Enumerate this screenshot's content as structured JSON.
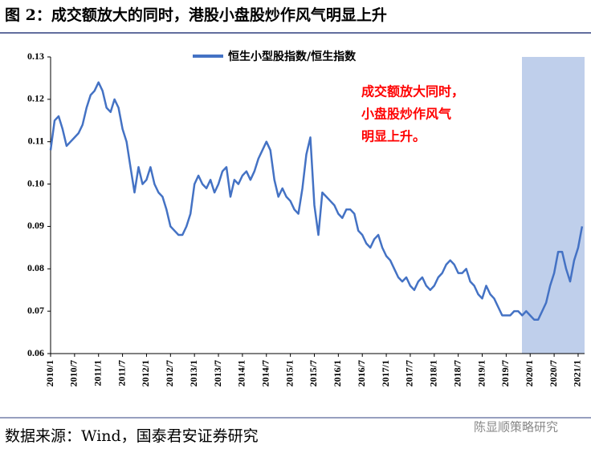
{
  "chart_data": {
    "type": "line",
    "title": "图 2：成交额放大的同时，港股小盘股炒作风气明显上升",
    "annotation": [
      "成交额放大同时，",
      "小盘股炒作风气",
      "明显上升。"
    ],
    "source": "数据来源：Wind，国泰君安证券研究",
    "watermark": "陈显顺策略研究",
    "categories": [
      "2010/1",
      null,
      null,
      null,
      null,
      null,
      "2010/7",
      null,
      null,
      null,
      null,
      null,
      "2011/1",
      null,
      null,
      null,
      null,
      null,
      "2011/7",
      null,
      null,
      null,
      null,
      null,
      "2012/1",
      null,
      null,
      null,
      null,
      null,
      "2012/7",
      null,
      null,
      null,
      null,
      null,
      "2013/1",
      null,
      null,
      null,
      null,
      null,
      "2013/7",
      null,
      null,
      null,
      null,
      null,
      "2014/1",
      null,
      null,
      null,
      null,
      null,
      "2014/7",
      null,
      null,
      null,
      null,
      null,
      "2015/1",
      null,
      null,
      null,
      null,
      null,
      "2015/7",
      null,
      null,
      null,
      null,
      null,
      "2016/1",
      null,
      null,
      null,
      null,
      null,
      "2016/7",
      null,
      null,
      null,
      null,
      null,
      "2017/1",
      null,
      null,
      null,
      null,
      null,
      "2017/7",
      null,
      null,
      null,
      null,
      null,
      "2018/1",
      null,
      null,
      null,
      null,
      null,
      "2018/7",
      null,
      null,
      null,
      null,
      null,
      "2019/1",
      null,
      null,
      null,
      null,
      null,
      "2019/7",
      null,
      null,
      null,
      null,
      null,
      "2020/1",
      null,
      null,
      null,
      null,
      null,
      "2020/7",
      null,
      null,
      null,
      null,
      null,
      "2021/1",
      null
    ],
    "series": [
      {
        "name": "恒生小型股指数/恒生指数",
        "color": "#4472c4",
        "values": [
          0.108,
          0.115,
          0.116,
          0.113,
          0.109,
          0.11,
          0.111,
          0.112,
          0.114,
          0.118,
          0.121,
          0.122,
          0.124,
          0.122,
          0.118,
          0.117,
          0.12,
          0.118,
          0.113,
          0.11,
          0.104,
          0.098,
          0.104,
          0.1,
          0.101,
          0.104,
          0.1,
          0.098,
          0.097,
          0.094,
          0.09,
          0.089,
          0.088,
          0.088,
          0.09,
          0.093,
          0.1,
          0.102,
          0.1,
          0.099,
          0.101,
          0.098,
          0.1,
          0.103,
          0.104,
          0.097,
          0.101,
          0.1,
          0.102,
          0.103,
          0.101,
          0.103,
          0.106,
          0.108,
          0.11,
          0.108,
          0.101,
          0.097,
          0.099,
          0.097,
          0.096,
          0.094,
          0.093,
          0.099,
          0.107,
          0.111,
          0.095,
          0.088,
          0.098,
          0.097,
          0.096,
          0.095,
          0.093,
          0.092,
          0.094,
          0.094,
          0.093,
          0.089,
          0.088,
          0.086,
          0.085,
          0.087,
          0.088,
          0.085,
          0.083,
          0.082,
          0.08,
          0.078,
          0.077,
          0.078,
          0.076,
          0.075,
          0.077,
          0.078,
          0.076,
          0.075,
          0.076,
          0.078,
          0.079,
          0.081,
          0.082,
          0.081,
          0.079,
          0.079,
          0.08,
          0.077,
          0.076,
          0.074,
          0.073,
          0.076,
          0.074,
          0.073,
          0.071,
          0.069,
          0.069,
          0.069,
          0.07,
          0.07,
          0.069,
          0.07,
          0.069,
          0.068,
          0.068,
          0.07,
          0.072,
          0.076,
          0.079,
          0.084,
          0.084,
          0.08,
          0.077,
          0.082,
          0.085,
          0.09
        ]
      }
    ],
    "ylim": [
      0.06,
      0.13
    ],
    "yticks": [
      0.06,
      0.07,
      0.08,
      0.09,
      {
        "value": 0.1,
        "label": "0.10"
      },
      0.11,
      0.12,
      0.13
    ]
  }
}
